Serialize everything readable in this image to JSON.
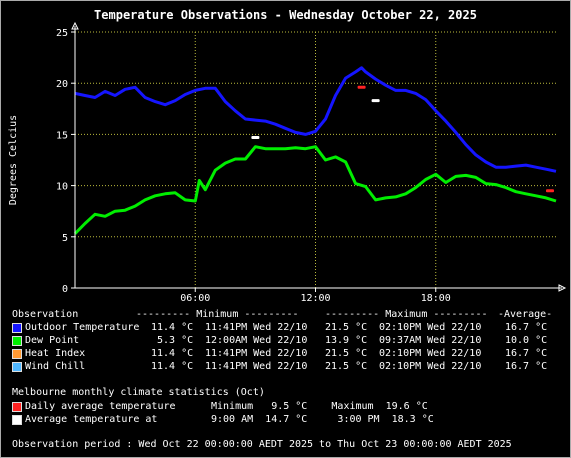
{
  "title": "Temperature Observations - Wednesday October 22, 2025",
  "colors": {
    "background": "#000000",
    "grid": "#bcbc3c",
    "outdoor": "#1515ff",
    "dew": "#00ee00",
    "heat": "#ff9933",
    "wind": "#4fb7ff",
    "daily_avg_marker": "#ff2222",
    "avg_marker": "#ffffff"
  },
  "chart_data": {
    "type": "line",
    "ylabel": "Degrees Celcius",
    "ylim": [
      0,
      25
    ],
    "yticks": [
      "0",
      "5",
      "10",
      "15",
      "20",
      "25"
    ],
    "xlim_hours": [
      0,
      24
    ],
    "xticks": [
      {
        "hour": 6,
        "label": "06:00"
      },
      {
        "hour": 12,
        "label": "12:00"
      },
      {
        "hour": 18,
        "label": "18:00"
      }
    ],
    "grid": true,
    "series": [
      {
        "name": "Outdoor Temperature",
        "color": "#1515ff",
        "x": [
          0,
          0.5,
          1,
          1.5,
          2,
          2.5,
          3,
          3.5,
          4,
          4.5,
          5,
          5.5,
          6,
          6.5,
          7,
          7.5,
          8,
          8.5,
          9,
          9.5,
          10,
          10.5,
          11,
          11.5,
          12,
          12.5,
          13,
          13.5,
          14,
          14.3,
          14.5,
          15,
          15.5,
          16,
          16.5,
          17,
          17.5,
          18,
          18.5,
          19,
          19.5,
          20,
          20.5,
          21,
          21.5,
          22,
          22.5,
          23,
          23.5,
          24
        ],
        "y": [
          19,
          18.8,
          18.6,
          19.2,
          18.8,
          19.4,
          19.6,
          18.6,
          18.2,
          17.9,
          18.3,
          18.9,
          19.3,
          19.5,
          19.5,
          18.2,
          17.3,
          16.5,
          16.4,
          16.3,
          16,
          15.6,
          15.2,
          15,
          15.3,
          16.5,
          18.8,
          20.5,
          21.1,
          21.5,
          21.1,
          20.4,
          19.8,
          19.3,
          19.3,
          19,
          18.4,
          17.3,
          16.3,
          15.2,
          14,
          13,
          12.3,
          11.8,
          11.8,
          11.9,
          12,
          11.8,
          11.6,
          11.4
        ]
      },
      {
        "name": "Dew Point",
        "color": "#00ee00",
        "x": [
          0,
          0.5,
          1,
          1.5,
          2,
          2.5,
          3,
          3.5,
          4,
          4.5,
          5,
          5.5,
          6,
          6.2,
          6.5,
          7,
          7.5,
          8,
          8.5,
          9,
          9.5,
          10,
          10.5,
          11,
          11.5,
          12,
          12.5,
          13,
          13.5,
          14,
          14.5,
          15,
          15.5,
          16,
          16.5,
          17,
          17.5,
          18,
          18.5,
          19,
          19.5,
          20,
          20.5,
          21,
          21.5,
          22,
          22.5,
          23,
          23.5,
          24
        ],
        "y": [
          5.3,
          6.3,
          7.2,
          7,
          7.5,
          7.6,
          8,
          8.6,
          9,
          9.2,
          9.3,
          8.6,
          8.5,
          10.5,
          9.6,
          11.5,
          12.2,
          12.6,
          12.6,
          13.8,
          13.6,
          13.6,
          13.6,
          13.7,
          13.6,
          13.8,
          12.5,
          12.8,
          12.3,
          10.2,
          9.9,
          8.6,
          8.8,
          8.9,
          9.2,
          9.8,
          10.6,
          11.1,
          10.3,
          10.9,
          11,
          10.8,
          10.2,
          10.1,
          9.8,
          9.4,
          9.2,
          9,
          8.8,
          8.5
        ]
      },
      {
        "name": "Heat Index",
        "color": "#ff9933"
      },
      {
        "name": "Wind Chill",
        "color": "#4fb7ff"
      }
    ],
    "markers": [
      {
        "name": "Daily average temperature",
        "hour": 14.3,
        "value": 19.6,
        "color": "#ff2222"
      },
      {
        "name": "Daily average temperature",
        "hour": 23.7,
        "value": 9.5,
        "color": "#ff2222"
      },
      {
        "name": "Average temperature",
        "hour": 9,
        "value": 14.7,
        "color": "#ffffff"
      },
      {
        "name": "Average temperature",
        "hour": 15,
        "value": 18.3,
        "color": "#ffffff"
      }
    ]
  },
  "stats": {
    "header": {
      "observation": "Observation",
      "minimum": "--------- Minimum ---------",
      "maximum": "--------- Maximum ---------",
      "average": "-Average-"
    },
    "rows": [
      {
        "label": "Outdoor Temperature",
        "color": "#1515ff",
        "min": "11.4 °C",
        "min_time": "11:41PM Wed 22/10",
        "max": "21.5 °C",
        "max_time": "02:10PM Wed 22/10",
        "avg": "16.7 °C"
      },
      {
        "label": "Dew Point",
        "color": "#00ee00",
        "min": " 5.3 °C",
        "min_time": "12:00AM Wed 22/10",
        "max": "13.9 °C",
        "max_time": "09:37AM Wed 22/10",
        "avg": "10.0 °C"
      },
      {
        "label": "Heat Index",
        "color": "#ff9933",
        "min": "11.4 °C",
        "min_time": "11:41PM Wed 22/10",
        "max": "21.5 °C",
        "max_time": "02:10PM Wed 22/10",
        "avg": "16.7 °C"
      },
      {
        "label": "Wind Chill",
        "color": "#4fb7ff",
        "min": "11.4 °C",
        "min_time": "11:41PM Wed 22/10",
        "max": "21.5 °C",
        "max_time": "02:10PM Wed 22/10",
        "avg": "16.7 °C"
      }
    ]
  },
  "climate": {
    "heading": "Melbourne monthly climate statistics (Oct)",
    "row1": {
      "label": "Daily average temperature",
      "color": "#ff2222",
      "text": "Minimum   9.5 °C    Maximum  19.6 °C"
    },
    "row2": {
      "label": "Average temperature at",
      "color": "#ffffff",
      "text": "9:00 AM  14.7 °C     3:00 PM  18.3 °C"
    }
  },
  "period": "Observation period : Wed Oct 22 00:00:00 AEDT 2025 to Thu Oct 23 00:00:00 AEDT 2025"
}
